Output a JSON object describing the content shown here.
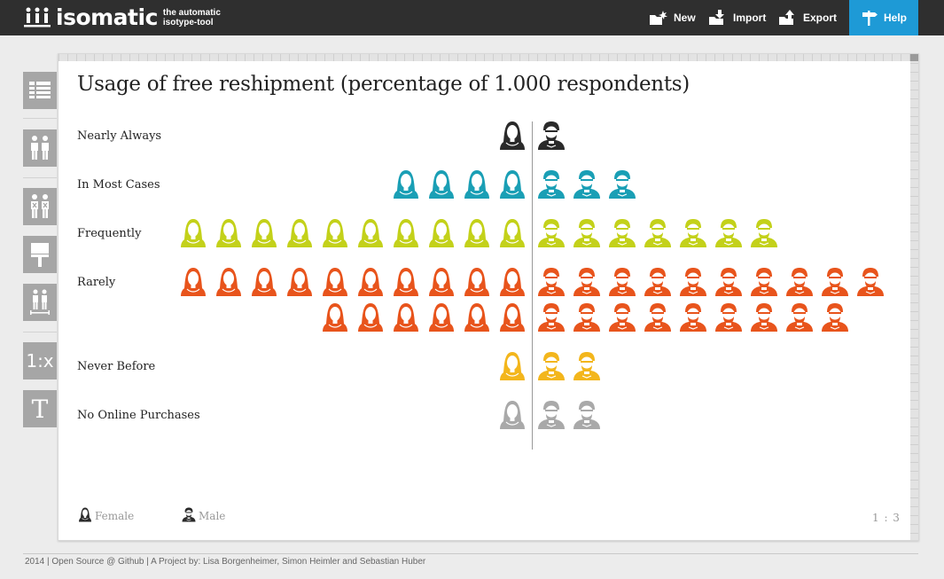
{
  "app": {
    "name": "isomatic",
    "tagline_line1": "the automatic",
    "tagline_line2": "isotype-tool"
  },
  "nav": {
    "new": "New",
    "import": "Import",
    "export": "Export",
    "help": "Help"
  },
  "sidebar": {
    "tools": [
      "table-icon",
      "people-icon",
      "people-marked-icon",
      "paint-brush-icon",
      "people-scale-icon",
      "ratio-tool",
      "text-tool"
    ],
    "ratio_label": "1:x",
    "text_label": "T"
  },
  "chart": {
    "title": "Usage of free reshipment (percentage of 1.000 respondents)",
    "legend": {
      "female": "Female",
      "male": "Male"
    },
    "scale": "1 : 3"
  },
  "chart_data": {
    "type": "isotype",
    "title": "Usage of free reshipment (percentage of 1.000 respondents)",
    "icon_ratio": "1 : 3",
    "categories": [
      "Nearly Always",
      "In Most Cases",
      "Frequently",
      "Rarely",
      "Never Before",
      "No Online Purchases"
    ],
    "series": [
      {
        "name": "Female",
        "values": [
          1,
          4,
          10,
          16,
          1,
          1
        ]
      },
      {
        "name": "Male",
        "values": [
          1,
          3,
          7,
          19,
          2,
          2
        ]
      }
    ],
    "colors": [
      "#2a2a2a",
      "#1a9fb5",
      "#c3d11a",
      "#e8541c",
      "#f3b61c",
      "#a9a9a9"
    ]
  },
  "footer": {
    "text": "2014 | Open Source @ Github | A Project by: Lisa Borgenheimer, Simon Heimler and Sebastian Huber"
  }
}
